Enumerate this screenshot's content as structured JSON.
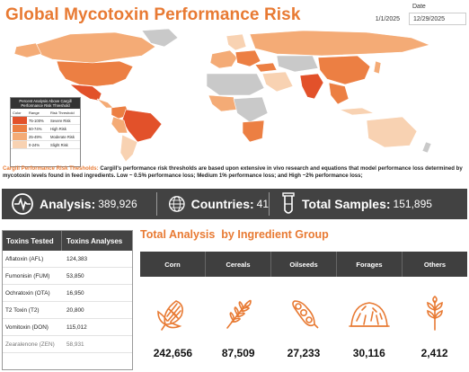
{
  "header": {
    "title": "Global Mycotoxin Performance Risk",
    "date_label": "Date",
    "date_from": "1/1/2025",
    "date_to": "12/29/2025"
  },
  "colors": {
    "accent": "#e87a33",
    "severe": "#e2512a",
    "high": "#ec7f43",
    "moderate": "#f4ab76",
    "slight": "#f8d2b2",
    "no_data": "#c9c9c9",
    "dark_bar": "#424242"
  },
  "legend": {
    "title": "Percent Analysis Above Cargill Performance Risk Threshold",
    "col_color": "Color",
    "col_range": "Range",
    "col_risk": "Risk Threshold",
    "rows": [
      {
        "range": "75-100%",
        "risk": "Severe Risk",
        "color": "#e2512a"
      },
      {
        "range": "50-74%",
        "risk": "High Risk",
        "color": "#ec7f43"
      },
      {
        "range": "25-49%",
        "risk": "Moderate Risk",
        "color": "#f4ab76"
      },
      {
        "range": "0-24%",
        "risk": "Slight Risk",
        "color": "#f8d2b2"
      }
    ]
  },
  "thresholds": {
    "lead": "Cargill Performance Risk Thesholds:",
    "text": " Cargill's performance risk thresholds are based upon extensive in vivo research and equations that model performance loss determined by mycotoxin levels found in feed ingredients. Low ~ 0.5% performance loss; Medium 1% performance loss; and High ~2% performance loss;"
  },
  "stats": {
    "analysis_label": "Analysis:",
    "analysis_value": "389,926",
    "countries_label": "Countries:",
    "countries_value": "41",
    "samples_label": "Total Samples:",
    "samples_value": "151,895"
  },
  "toxins": {
    "col1": "Toxins Tested",
    "col2": "Toxins Analyses",
    "rows": [
      {
        "name": "Aflatoxin (AFL)",
        "value": "124,383"
      },
      {
        "name": "Fumonisin (FUM)",
        "value": "53,850"
      },
      {
        "name": "Ochratoxin (OTA)",
        "value": "16,950"
      },
      {
        "name": "T2 Toxin (T2)",
        "value": "20,800"
      },
      {
        "name": "Vomitoxin (DON)",
        "value": "115,012"
      },
      {
        "name": "Zearalenone (ZEN)",
        "value": "58,931"
      }
    ]
  },
  "groups": {
    "title": "Total Analysis  by Ingredient Group",
    "items": [
      {
        "label": "Corn",
        "value": "242,656",
        "icon": "corn-icon"
      },
      {
        "label": "Cereals",
        "value": "87,509",
        "icon": "wheat-icon"
      },
      {
        "label": "Oilseeds",
        "value": "27,233",
        "icon": "soybean-icon"
      },
      {
        "label": "Forages",
        "value": "30,116",
        "icon": "haystack-icon"
      },
      {
        "label": "Others",
        "value": "2,412",
        "icon": "sprout-icon"
      }
    ]
  }
}
